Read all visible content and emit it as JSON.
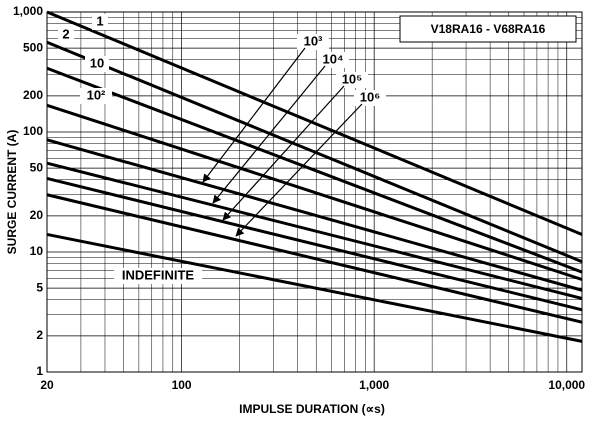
{
  "chart_data": {
    "type": "line",
    "title": "V18RA16 - V68RA16",
    "x_label": "IMPULSE DURATION (∝s)",
    "y_label": "SURGE CURRENT (A)",
    "log_x": true,
    "log_y": true,
    "grid": true,
    "xlim": [
      20,
      12000
    ],
    "ylim": [
      1,
      1000
    ],
    "xticks": [
      20,
      100,
      {
        "value": 1000,
        "label": "1,000"
      },
      {
        "value": 10000,
        "label": "10,000"
      }
    ],
    "yticks": [
      1,
      2,
      5,
      10,
      20,
      50,
      100,
      200,
      500,
      {
        "value": 1000,
        "label": "1,000"
      }
    ],
    "x_minor_ticks": [
      30,
      40,
      50,
      60,
      70,
      80,
      90,
      200,
      300,
      400,
      500,
      600,
      700,
      800,
      900,
      2000,
      3000,
      4000,
      5000,
      6000,
      7000,
      8000,
      9000
    ],
    "y_minor_ticks": [
      3,
      4,
      6,
      7,
      8,
      9,
      30,
      40,
      60,
      70,
      80,
      90,
      300,
      400,
      600,
      700,
      800,
      900
    ],
    "series": [
      {
        "name": "1",
        "color": "#000000",
        "x": [
          20,
          12000
        ],
        "values": [
          1000,
          14
        ]
      },
      {
        "name": "2",
        "color": "#000000",
        "x": [
          20,
          12000
        ],
        "values": [
          560,
          8.3
        ]
      },
      {
        "name": "10",
        "color": "#000000",
        "x": [
          20,
          12000
        ],
        "values": [
          340,
          6.8
        ]
      },
      {
        "name": "10²",
        "color": "#000000",
        "x": [
          20,
          12000
        ],
        "values": [
          167,
          5.9
        ]
      },
      {
        "name": "10³",
        "color": "#000000",
        "x": [
          20,
          12000
        ],
        "values": [
          86,
          4.8
        ]
      },
      {
        "name": "10⁴",
        "color": "#000000",
        "x": [
          20,
          12000
        ],
        "values": [
          55,
          4.1
        ]
      },
      {
        "name": "10⁵",
        "color": "#000000",
        "x": [
          20,
          12000
        ],
        "values": [
          41,
          3.3
        ]
      },
      {
        "name": "10⁶",
        "color": "#000000",
        "x": [
          20,
          12000
        ],
        "values": [
          30,
          2.6
        ]
      },
      {
        "name": "INDEFINITE",
        "color": "#000000",
        "x": [
          20,
          12000
        ],
        "values": [
          14,
          1.8
        ]
      }
    ]
  }
}
